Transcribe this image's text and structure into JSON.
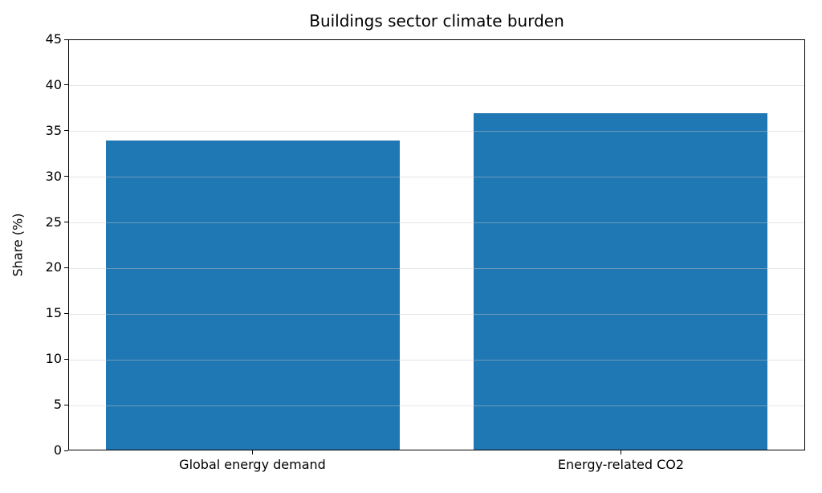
{
  "chart_data": {
    "type": "bar",
    "title": "Buildings sector climate burden",
    "categories": [
      "Global energy demand",
      "Energy-related CO2"
    ],
    "values": [
      34,
      37
    ],
    "xlabel": "",
    "ylabel": "Share (%)",
    "ylim": [
      0,
      45
    ],
    "yticks": [
      0,
      5,
      10,
      15,
      20,
      25,
      30,
      35,
      40,
      45
    ],
    "bar_color": "#1f77b4",
    "bar_width_fraction": 0.8,
    "grid": "horizontal",
    "gridline_color": "#e6e6e6",
    "axis_color": "#000000",
    "background_color": "#ffffff",
    "legend": "none"
  }
}
